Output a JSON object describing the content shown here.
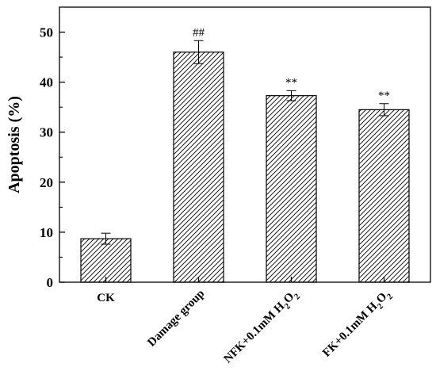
{
  "chart_data": {
    "type": "bar",
    "categories": [
      "CK",
      "Damage group",
      "NFK+0.1mM H2O2",
      "FK+0.1mM H2O2"
    ],
    "category_labels": [
      {
        "text": "CK"
      },
      {
        "text": "Damage group"
      },
      {
        "text": "NFK+0.1mM H",
        "sub1": "2",
        "mid": "O",
        "sub2": "2"
      },
      {
        "text": "FK+0.1mM H",
        "sub1": "2",
        "mid": "O",
        "sub2": "2"
      }
    ],
    "values": [
      8.7,
      46.0,
      37.3,
      34.5
    ],
    "errors": [
      1.1,
      2.3,
      1.0,
      1.2
    ],
    "annotations": [
      "",
      "##",
      "**",
      "**"
    ],
    "ylabel": "Apoptosis (%)",
    "xlabel": "",
    "ylim": [
      0,
      55
    ],
    "yticks": [
      0,
      10,
      20,
      30,
      40,
      50
    ],
    "bar_fill": "diagonal-hatch",
    "bar_color": "#000000",
    "grid": false,
    "legend": "none"
  }
}
